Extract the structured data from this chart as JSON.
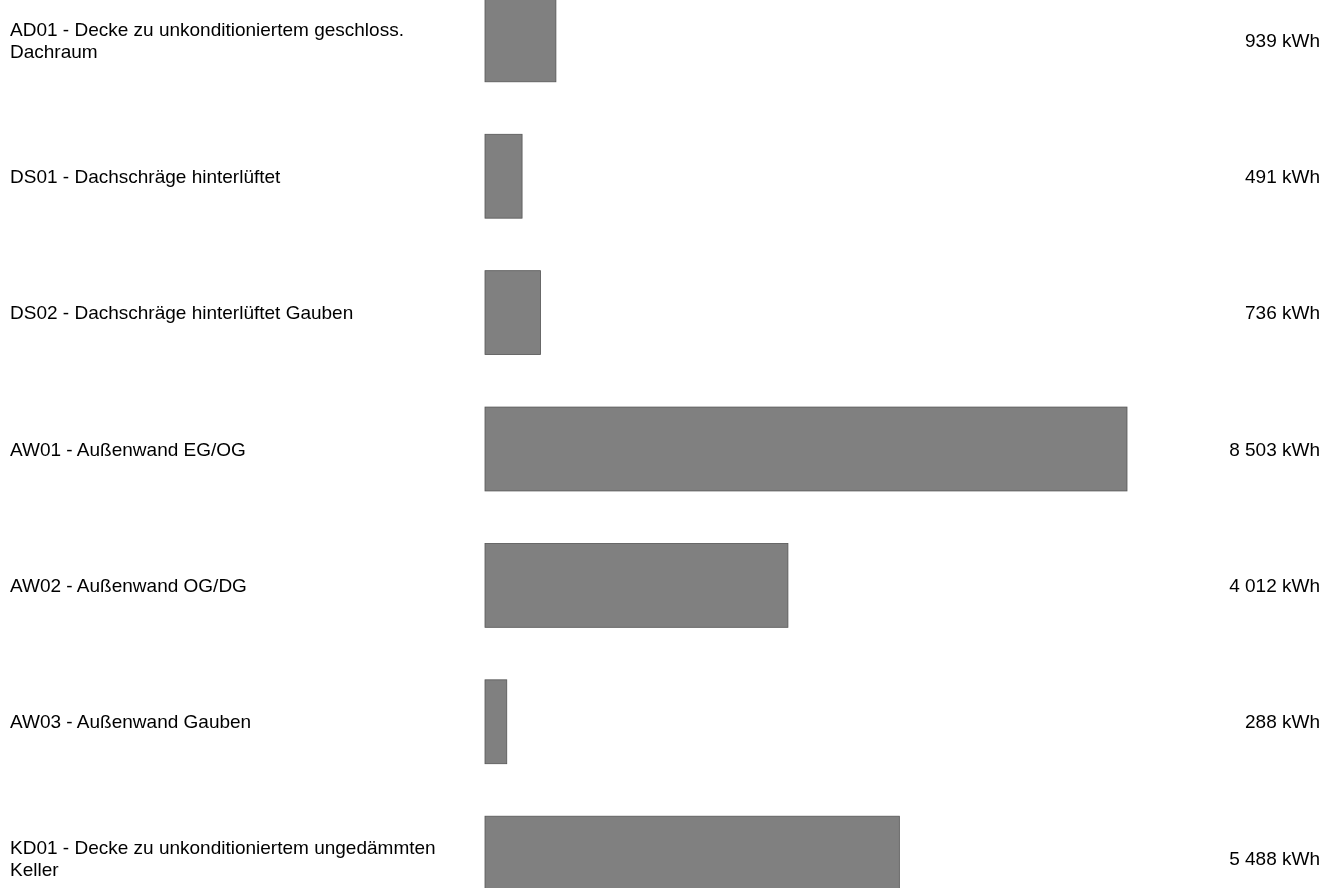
{
  "chart_data": {
    "type": "bar",
    "orientation": "horizontal",
    "categories": [
      "AD01 - Decke zu unkonditioniertem geschloss. Dachraum",
      "DS01 - Dachschräge hinterlüftet",
      "DS02 - Dachschräge hinterlüftet Gauben",
      "AW01 - Außenwand EG/OG",
      "AW02 - Außenwand OG/DG",
      "AW03 - Außenwand Gauben",
      "KD01 - Decke zu unkonditioniertem ungedämmten Keller"
    ],
    "values": [
      939,
      491,
      736,
      8503,
      4012,
      288,
      5488
    ],
    "value_labels": [
      "939 kWh",
      "491 kWh",
      "736 kWh",
      "8 503 kWh",
      "4 012 kWh",
      "288 kWh",
      "5 488 kWh"
    ],
    "color": "#808080"
  }
}
